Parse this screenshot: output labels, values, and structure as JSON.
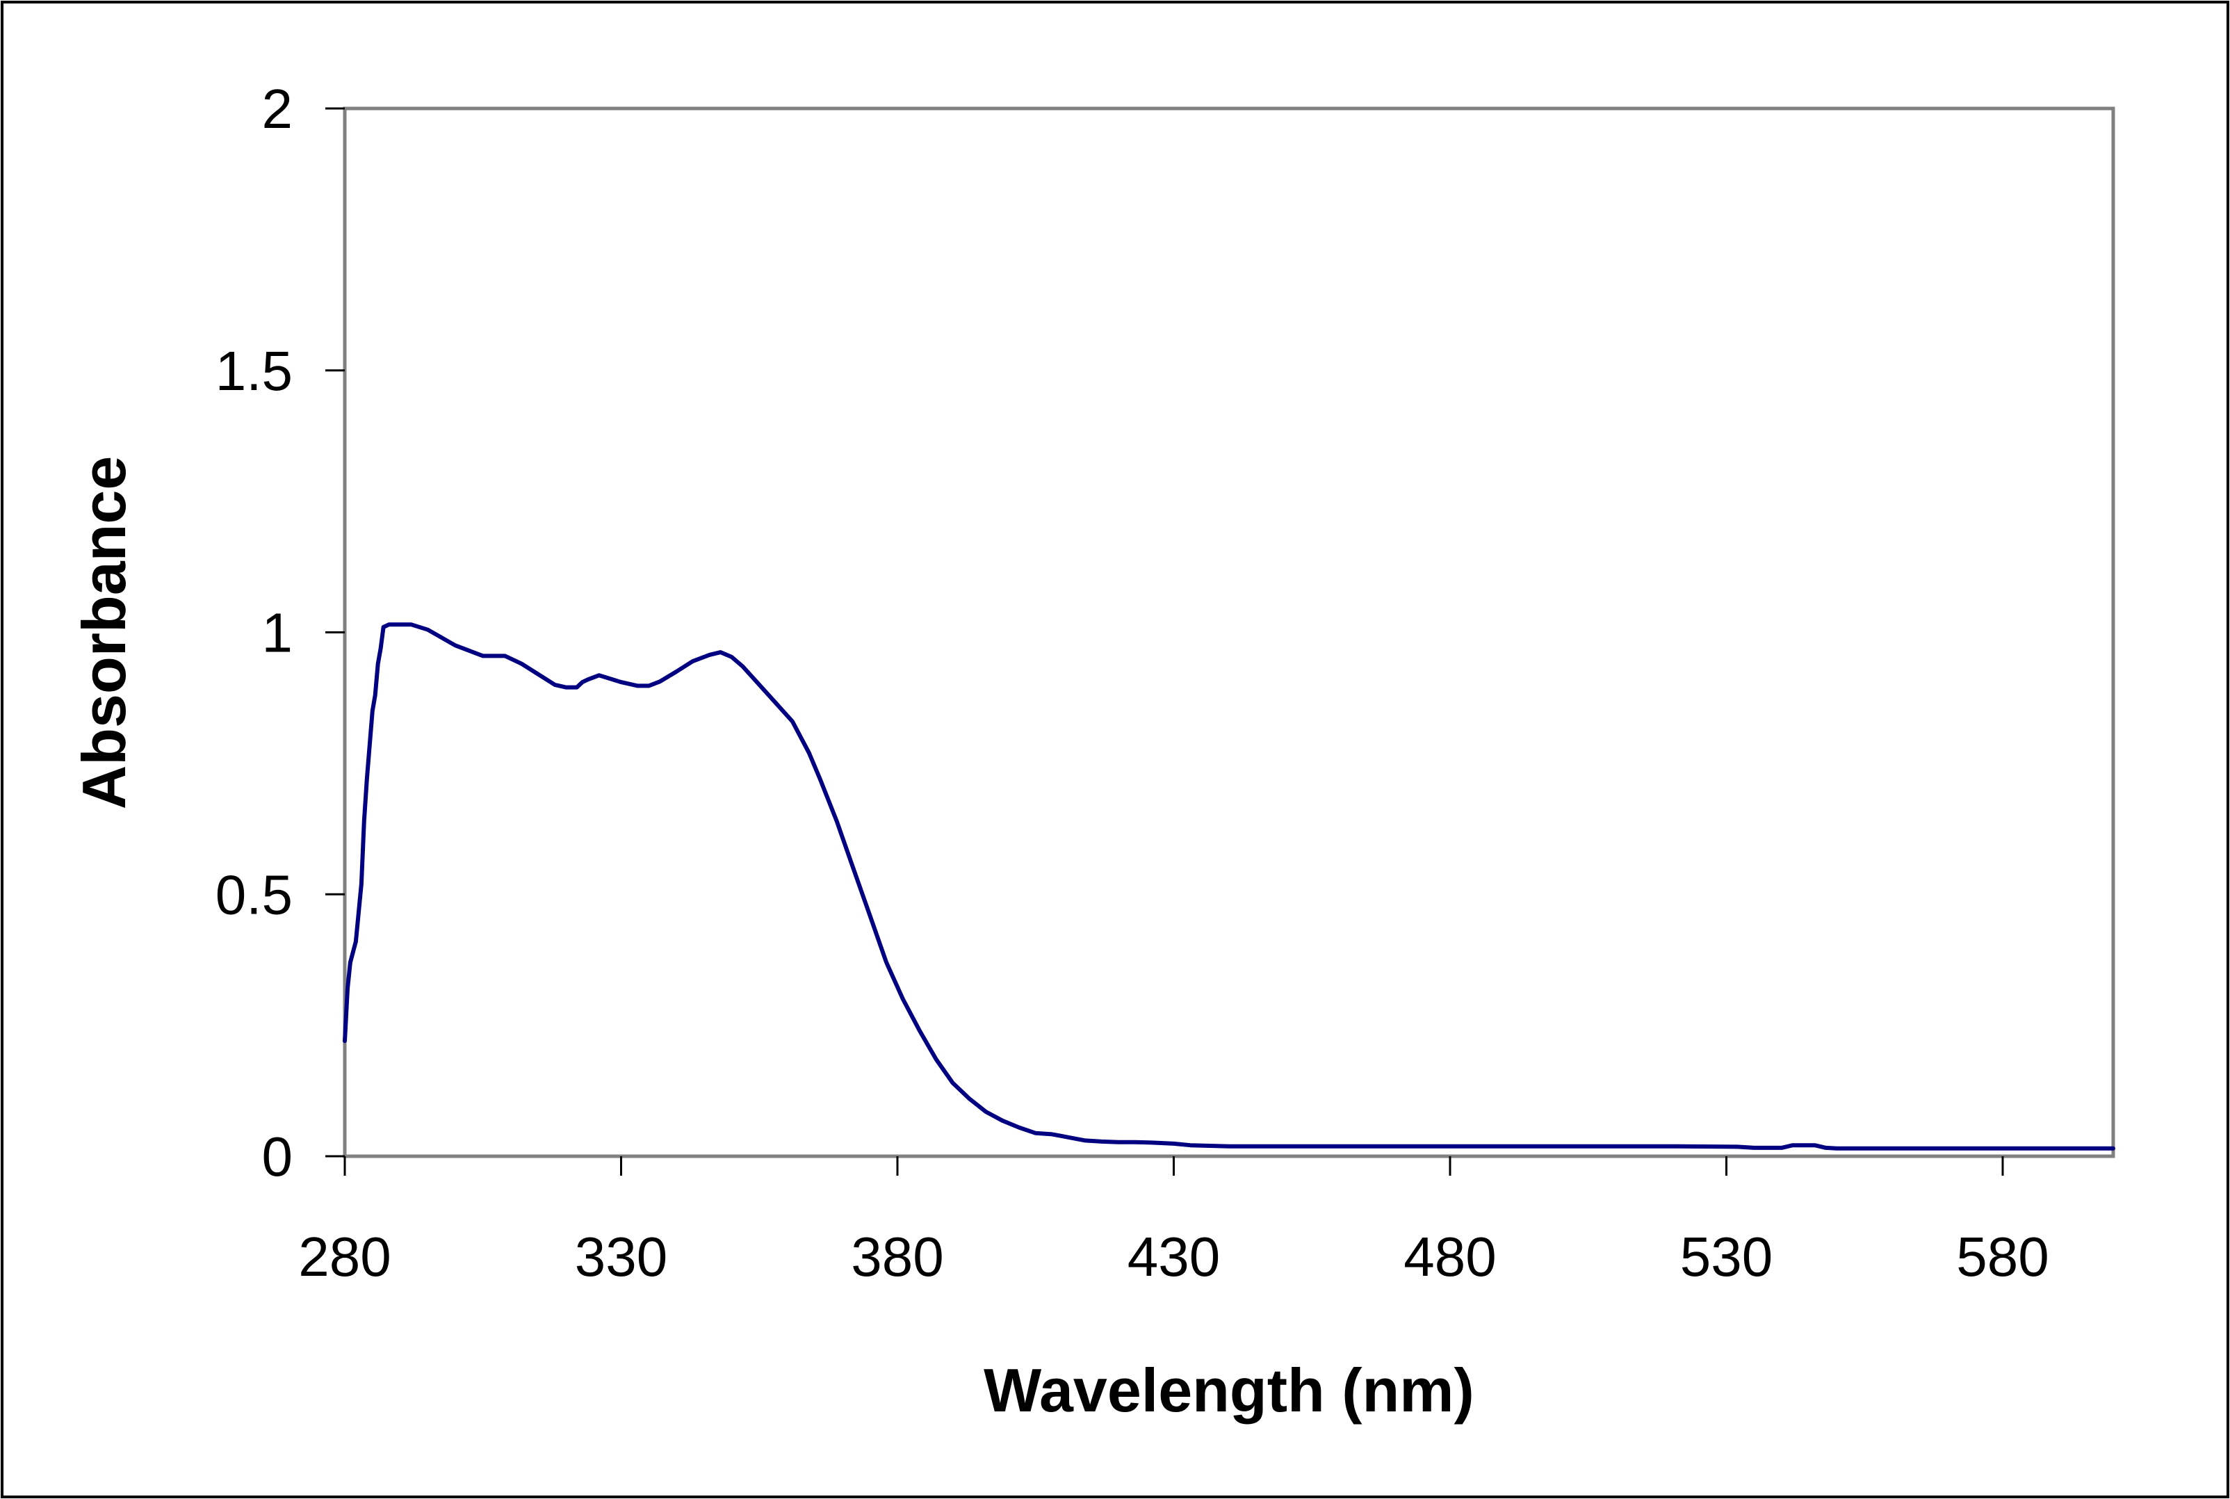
{
  "chart_data": {
    "type": "line",
    "title": "",
    "xlabel": "Wavelength  (nm)",
    "ylabel": "Absorbance",
    "xlim": [
      280,
      600
    ],
    "ylim": [
      0,
      2
    ],
    "x_ticks": [
      280,
      330,
      380,
      430,
      480,
      530,
      580
    ],
    "x_tick_labels": [
      "280",
      "330",
      "380",
      "430",
      "480",
      "530",
      "580"
    ],
    "y_ticks": [
      0,
      0.5,
      1,
      1.5,
      2
    ],
    "y_tick_labels": [
      "0",
      "0.5",
      "1",
      "1.5",
      "2"
    ],
    "grid": false,
    "legend": "none",
    "colors": {
      "line": "#000080",
      "axis": "#808080",
      "tick": "#000000",
      "frame": "#000000",
      "background": "#ffffff"
    },
    "series": [
      {
        "name": "Absorbance",
        "x": [
          280,
          280.5,
          281,
          282,
          283,
          283.5,
          284,
          285,
          285.5,
          286,
          286.5,
          287,
          288,
          290,
          292,
          295,
          300,
          305,
          309,
          312,
          315,
          318,
          320,
          322,
          323,
          324,
          326,
          330,
          333,
          335,
          337,
          340,
          343,
          346,
          348,
          350,
          352,
          355,
          358,
          361,
          364,
          366,
          369,
          372,
          375,
          378,
          381,
          384,
          387,
          390,
          393,
          396,
          399,
          402,
          405,
          408,
          411,
          414,
          417,
          420,
          423,
          426,
          430,
          433,
          436,
          440,
          450,
          460,
          480,
          500,
          520,
          532,
          535,
          540,
          542,
          546,
          548,
          550,
          560,
          580,
          600
        ],
        "y": [
          0.22,
          0.32,
          0.37,
          0.41,
          0.52,
          0.64,
          0.72,
          0.85,
          0.88,
          0.94,
          0.97,
          1.01,
          1.015,
          1.015,
          1.015,
          1.005,
          0.975,
          0.955,
          0.955,
          0.94,
          0.92,
          0.9,
          0.895,
          0.895,
          0.905,
          0.91,
          0.918,
          0.905,
          0.898,
          0.898,
          0.906,
          0.925,
          0.945,
          0.957,
          0.962,
          0.953,
          0.935,
          0.9,
          0.865,
          0.83,
          0.77,
          0.72,
          0.64,
          0.55,
          0.46,
          0.37,
          0.3,
          0.24,
          0.185,
          0.14,
          0.11,
          0.085,
          0.068,
          0.055,
          0.044,
          0.042,
          0.036,
          0.03,
          0.028,
          0.027,
          0.027,
          0.026,
          0.024,
          0.021,
          0.02,
          0.019,
          0.019,
          0.019,
          0.019,
          0.019,
          0.019,
          0.018,
          0.016,
          0.016,
          0.021,
          0.021,
          0.016,
          0.015,
          0.015,
          0.015,
          0.015
        ]
      }
    ]
  }
}
